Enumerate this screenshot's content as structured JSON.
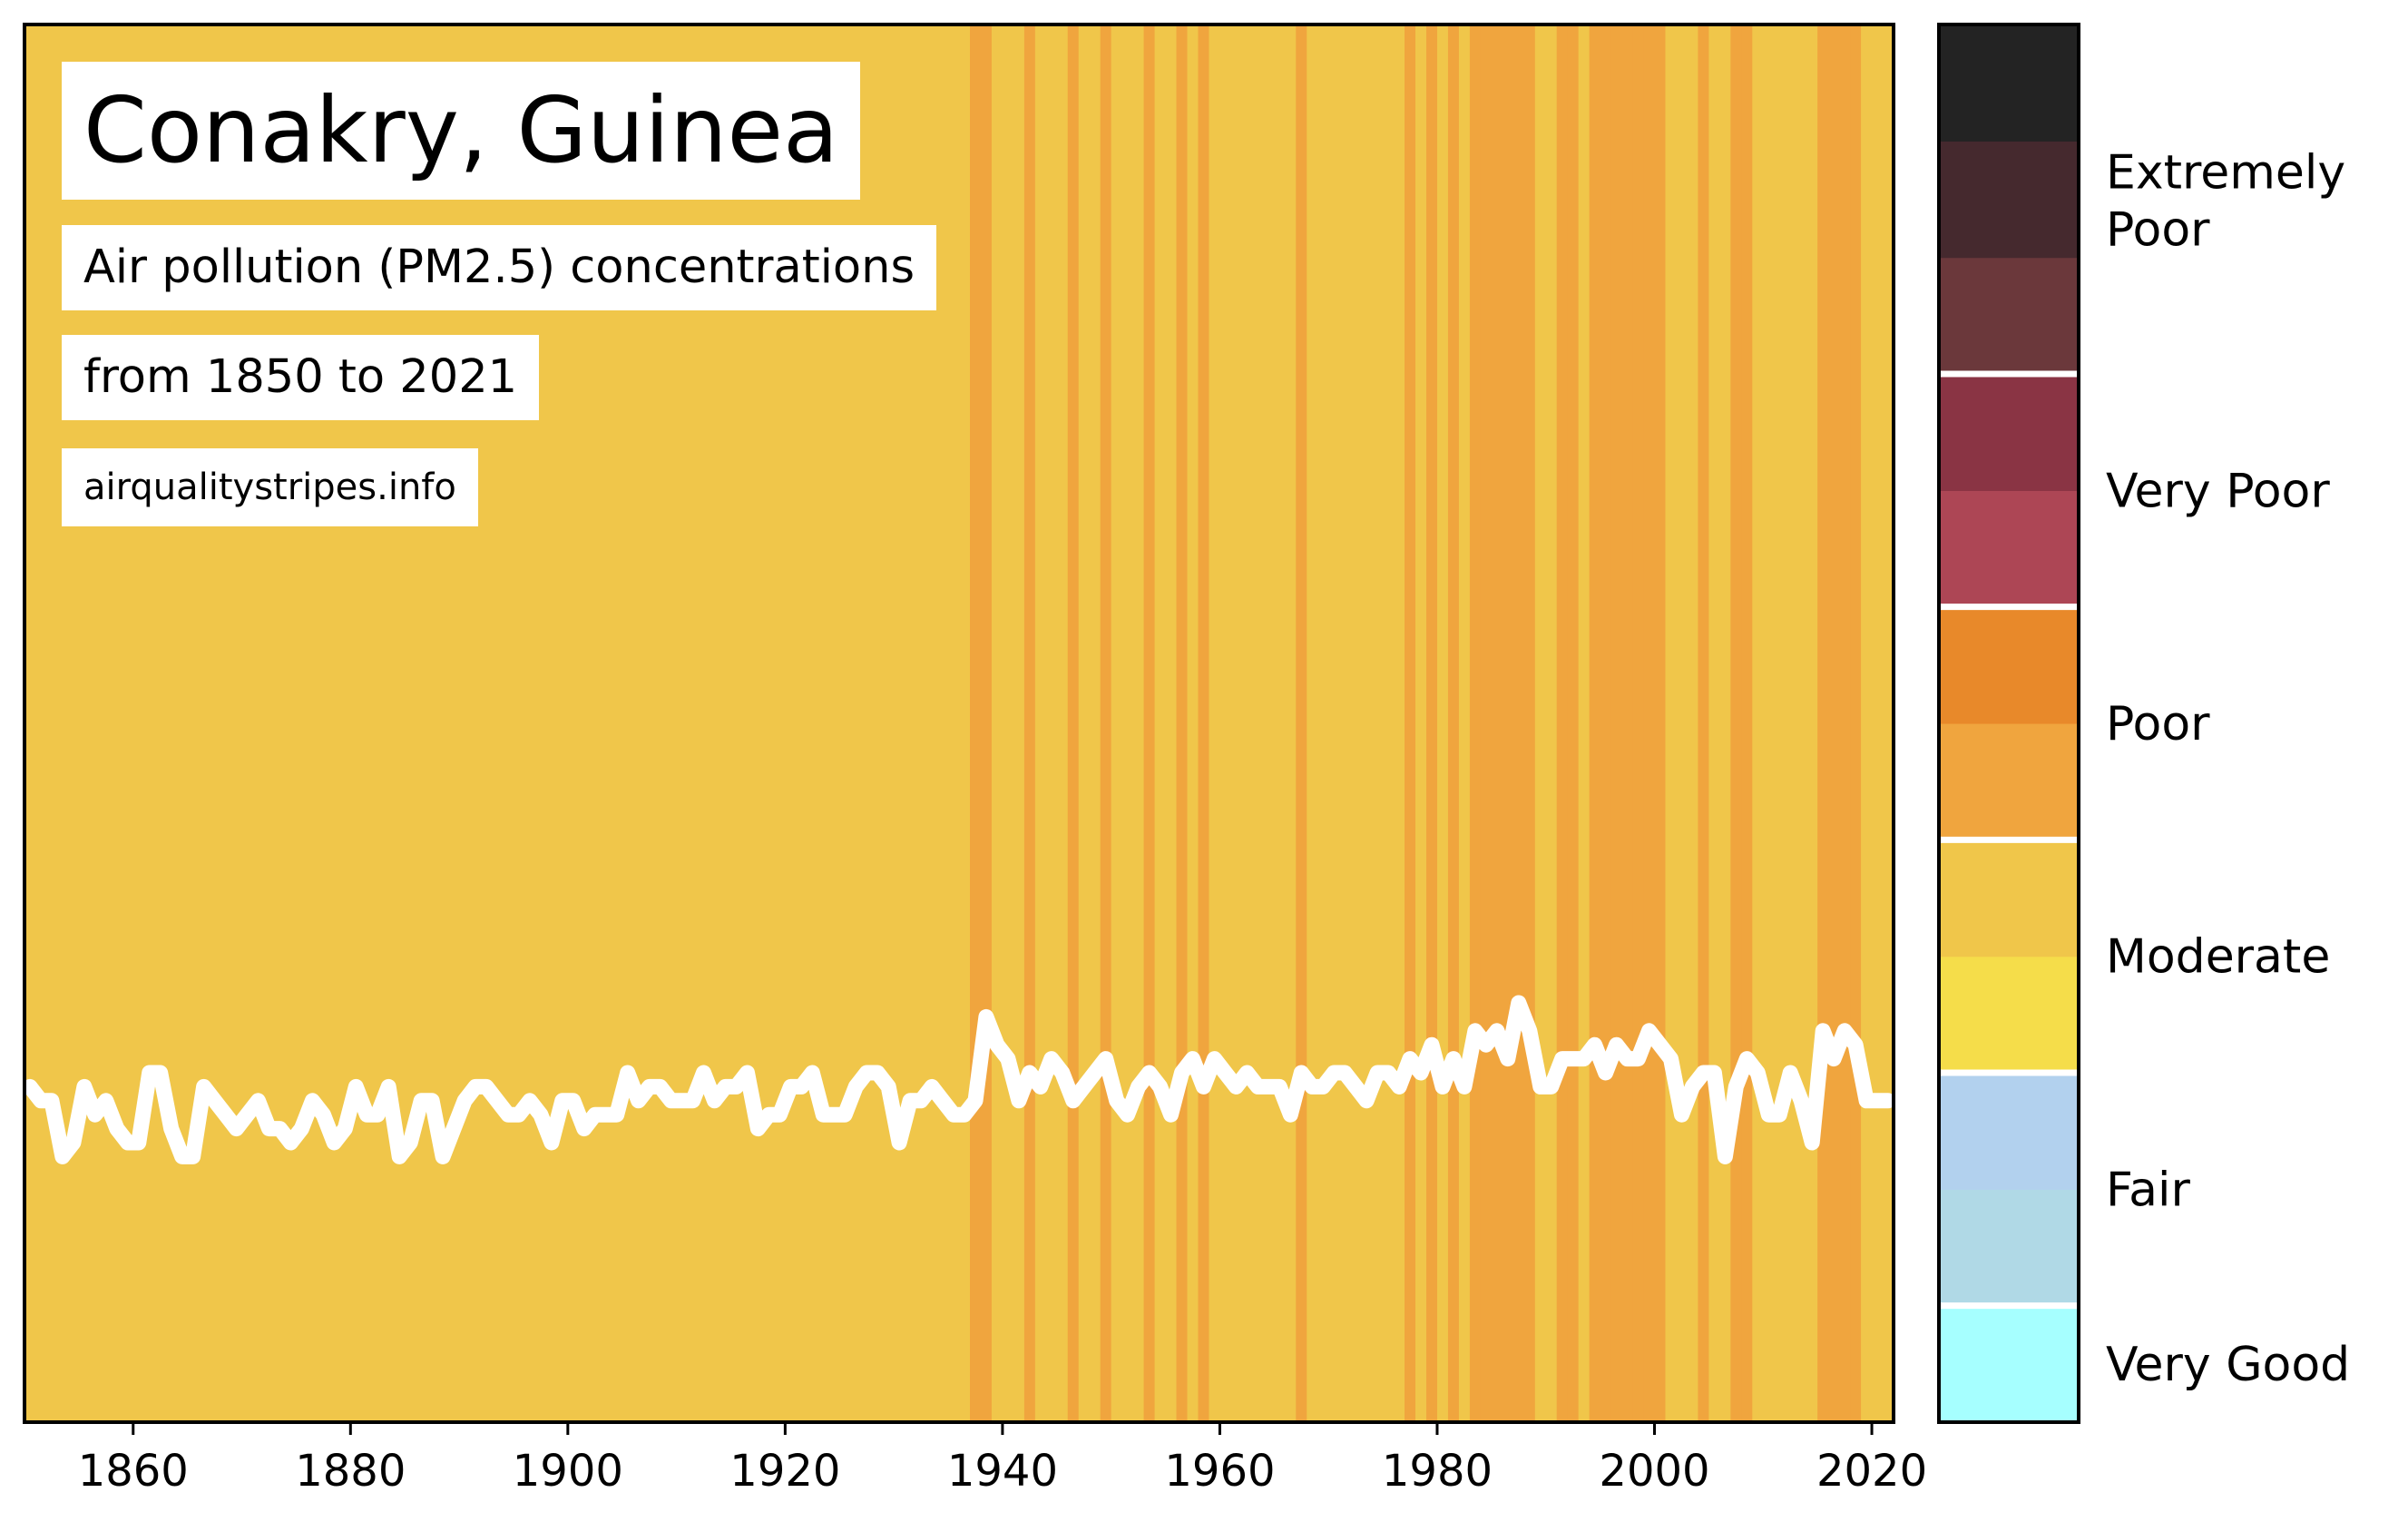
{
  "header": {
    "title": "Conakry, Guinea",
    "subtitle": "Air pollution (PM2.5) concentrations",
    "range": "from 1850 to 2021",
    "source": "airqualitystripes.info"
  },
  "chart_data": {
    "type": "heatmap",
    "title": "Conakry, Guinea",
    "subtitle": "Air pollution (PM2.5) concentrations from 1850 to 2021",
    "x_start": 1850,
    "x_end": 2021,
    "xlim": [
      1850,
      2022
    ],
    "xticks": [
      1860,
      1880,
      1900,
      1920,
      1940,
      1960,
      1980,
      2000,
      2020
    ],
    "xlabel": "",
    "ylabel": "",
    "grid": false,
    "stripe_colors": {
      "moderate": "#f0c64a",
      "poor": "#f0a53e"
    },
    "poor_years": [
      1937,
      1938,
      1942,
      1946,
      1949,
      1953,
      1956,
      1958,
      1967,
      1977,
      1979,
      1981,
      1983,
      1984,
      1985,
      1986,
      1987,
      1988,
      1991,
      1992,
      1994,
      1995,
      1996,
      1997,
      1998,
      1999,
      2000,
      2004,
      2007,
      2008,
      2015,
      2016,
      2017,
      2018
    ],
    "trend_line": {
      "color": "#ffffff",
      "note_ylim": [
        0,
        1
      ],
      "values": [
        [
          1850,
          0.24
        ],
        [
          1851,
          0.23
        ],
        [
          1852,
          0.23
        ],
        [
          1853,
          0.19
        ],
        [
          1854,
          0.2
        ],
        [
          1855,
          0.24
        ],
        [
          1856,
          0.22
        ],
        [
          1857,
          0.23
        ],
        [
          1858,
          0.21
        ],
        [
          1859,
          0.2
        ],
        [
          1860,
          0.2
        ],
        [
          1861,
          0.25
        ],
        [
          1862,
          0.25
        ],
        [
          1863,
          0.21
        ],
        [
          1864,
          0.19
        ],
        [
          1865,
          0.19
        ],
        [
          1866,
          0.24
        ],
        [
          1867,
          0.23
        ],
        [
          1868,
          0.22
        ],
        [
          1869,
          0.21
        ],
        [
          1870,
          0.22
        ],
        [
          1871,
          0.23
        ],
        [
          1872,
          0.21
        ],
        [
          1873,
          0.21
        ],
        [
          1874,
          0.2
        ],
        [
          1875,
          0.21
        ],
        [
          1876,
          0.23
        ],
        [
          1877,
          0.22
        ],
        [
          1878,
          0.2
        ],
        [
          1879,
          0.21
        ],
        [
          1880,
          0.24
        ],
        [
          1881,
          0.22
        ],
        [
          1882,
          0.22
        ],
        [
          1883,
          0.24
        ],
        [
          1884,
          0.19
        ],
        [
          1885,
          0.2
        ],
        [
          1886,
          0.23
        ],
        [
          1887,
          0.23
        ],
        [
          1888,
          0.19
        ],
        [
          1889,
          0.21
        ],
        [
          1890,
          0.23
        ],
        [
          1891,
          0.24
        ],
        [
          1892,
          0.24
        ],
        [
          1893,
          0.23
        ],
        [
          1894,
          0.22
        ],
        [
          1895,
          0.22
        ],
        [
          1896,
          0.23
        ],
        [
          1897,
          0.22
        ],
        [
          1898,
          0.2
        ],
        [
          1899,
          0.23
        ],
        [
          1900,
          0.23
        ],
        [
          1901,
          0.21
        ],
        [
          1902,
          0.22
        ],
        [
          1903,
          0.22
        ],
        [
          1904,
          0.22
        ],
        [
          1905,
          0.25
        ],
        [
          1906,
          0.23
        ],
        [
          1907,
          0.24
        ],
        [
          1908,
          0.24
        ],
        [
          1909,
          0.23
        ],
        [
          1910,
          0.23
        ],
        [
          1911,
          0.23
        ],
        [
          1912,
          0.25
        ],
        [
          1913,
          0.23
        ],
        [
          1914,
          0.24
        ],
        [
          1915,
          0.24
        ],
        [
          1916,
          0.25
        ],
        [
          1917,
          0.21
        ],
        [
          1918,
          0.22
        ],
        [
          1919,
          0.22
        ],
        [
          1920,
          0.24
        ],
        [
          1921,
          0.24
        ],
        [
          1922,
          0.25
        ],
        [
          1923,
          0.22
        ],
        [
          1924,
          0.22
        ],
        [
          1925,
          0.22
        ],
        [
          1926,
          0.24
        ],
        [
          1927,
          0.25
        ],
        [
          1928,
          0.25
        ],
        [
          1929,
          0.24
        ],
        [
          1930,
          0.2
        ],
        [
          1931,
          0.23
        ],
        [
          1932,
          0.23
        ],
        [
          1933,
          0.24
        ],
        [
          1934,
          0.23
        ],
        [
          1935,
          0.22
        ],
        [
          1936,
          0.22
        ],
        [
          1937,
          0.23
        ],
        [
          1938,
          0.29
        ],
        [
          1939,
          0.27
        ],
        [
          1940,
          0.26
        ],
        [
          1941,
          0.23
        ],
        [
          1942,
          0.25
        ],
        [
          1943,
          0.24
        ],
        [
          1944,
          0.26
        ],
        [
          1945,
          0.25
        ],
        [
          1946,
          0.23
        ],
        [
          1947,
          0.24
        ],
        [
          1948,
          0.25
        ],
        [
          1949,
          0.26
        ],
        [
          1950,
          0.23
        ],
        [
          1951,
          0.22
        ],
        [
          1952,
          0.24
        ],
        [
          1953,
          0.25
        ],
        [
          1954,
          0.24
        ],
        [
          1955,
          0.22
        ],
        [
          1956,
          0.25
        ],
        [
          1957,
          0.26
        ],
        [
          1958,
          0.24
        ],
        [
          1959,
          0.26
        ],
        [
          1960,
          0.25
        ],
        [
          1961,
          0.24
        ],
        [
          1962,
          0.25
        ],
        [
          1963,
          0.24
        ],
        [
          1964,
          0.24
        ],
        [
          1965,
          0.24
        ],
        [
          1966,
          0.22
        ],
        [
          1967,
          0.25
        ],
        [
          1968,
          0.24
        ],
        [
          1969,
          0.24
        ],
        [
          1970,
          0.25
        ],
        [
          1971,
          0.25
        ],
        [
          1972,
          0.24
        ],
        [
          1973,
          0.23
        ],
        [
          1974,
          0.25
        ],
        [
          1975,
          0.25
        ],
        [
          1976,
          0.24
        ],
        [
          1977,
          0.26
        ],
        [
          1978,
          0.25
        ],
        [
          1979,
          0.27
        ],
        [
          1980,
          0.24
        ],
        [
          1981,
          0.26
        ],
        [
          1982,
          0.24
        ],
        [
          1983,
          0.28
        ],
        [
          1984,
          0.27
        ],
        [
          1985,
          0.28
        ],
        [
          1986,
          0.26
        ],
        [
          1987,
          0.3
        ],
        [
          1988,
          0.28
        ],
        [
          1989,
          0.24
        ],
        [
          1990,
          0.24
        ],
        [
          1991,
          0.26
        ],
        [
          1992,
          0.26
        ],
        [
          1993,
          0.26
        ],
        [
          1994,
          0.27
        ],
        [
          1995,
          0.25
        ],
        [
          1996,
          0.27
        ],
        [
          1997,
          0.26
        ],
        [
          1998,
          0.26
        ],
        [
          1999,
          0.28
        ],
        [
          2000,
          0.27
        ],
        [
          2001,
          0.26
        ],
        [
          2002,
          0.22
        ],
        [
          2003,
          0.24
        ],
        [
          2004,
          0.25
        ],
        [
          2005,
          0.25
        ],
        [
          2006,
          0.19
        ],
        [
          2007,
          0.24
        ],
        [
          2008,
          0.26
        ],
        [
          2009,
          0.25
        ],
        [
          2010,
          0.22
        ],
        [
          2011,
          0.22
        ],
        [
          2012,
          0.25
        ],
        [
          2013,
          0.23
        ],
        [
          2014,
          0.2
        ],
        [
          2015,
          0.28
        ],
        [
          2016,
          0.26
        ],
        [
          2017,
          0.28
        ],
        [
          2018,
          0.27
        ],
        [
          2019,
          0.23
        ],
        [
          2020,
          0.23
        ],
        [
          2021,
          0.23
        ]
      ]
    }
  },
  "legend": {
    "type": "colorbar",
    "colors": [
      "#a6ffff",
      "#b0d9e6",
      "#b2d1ee",
      "#f5dd4a",
      "#f0c64a",
      "#f0a53e",
      "#e8892a",
      "#ad4655",
      "#8a3444",
      "#6b383b",
      "#45292e",
      "#232323"
    ],
    "labels": [
      "Very Good",
      "Fair",
      "Moderate",
      "Poor",
      "Very Poor",
      "Extremely Poor"
    ]
  }
}
